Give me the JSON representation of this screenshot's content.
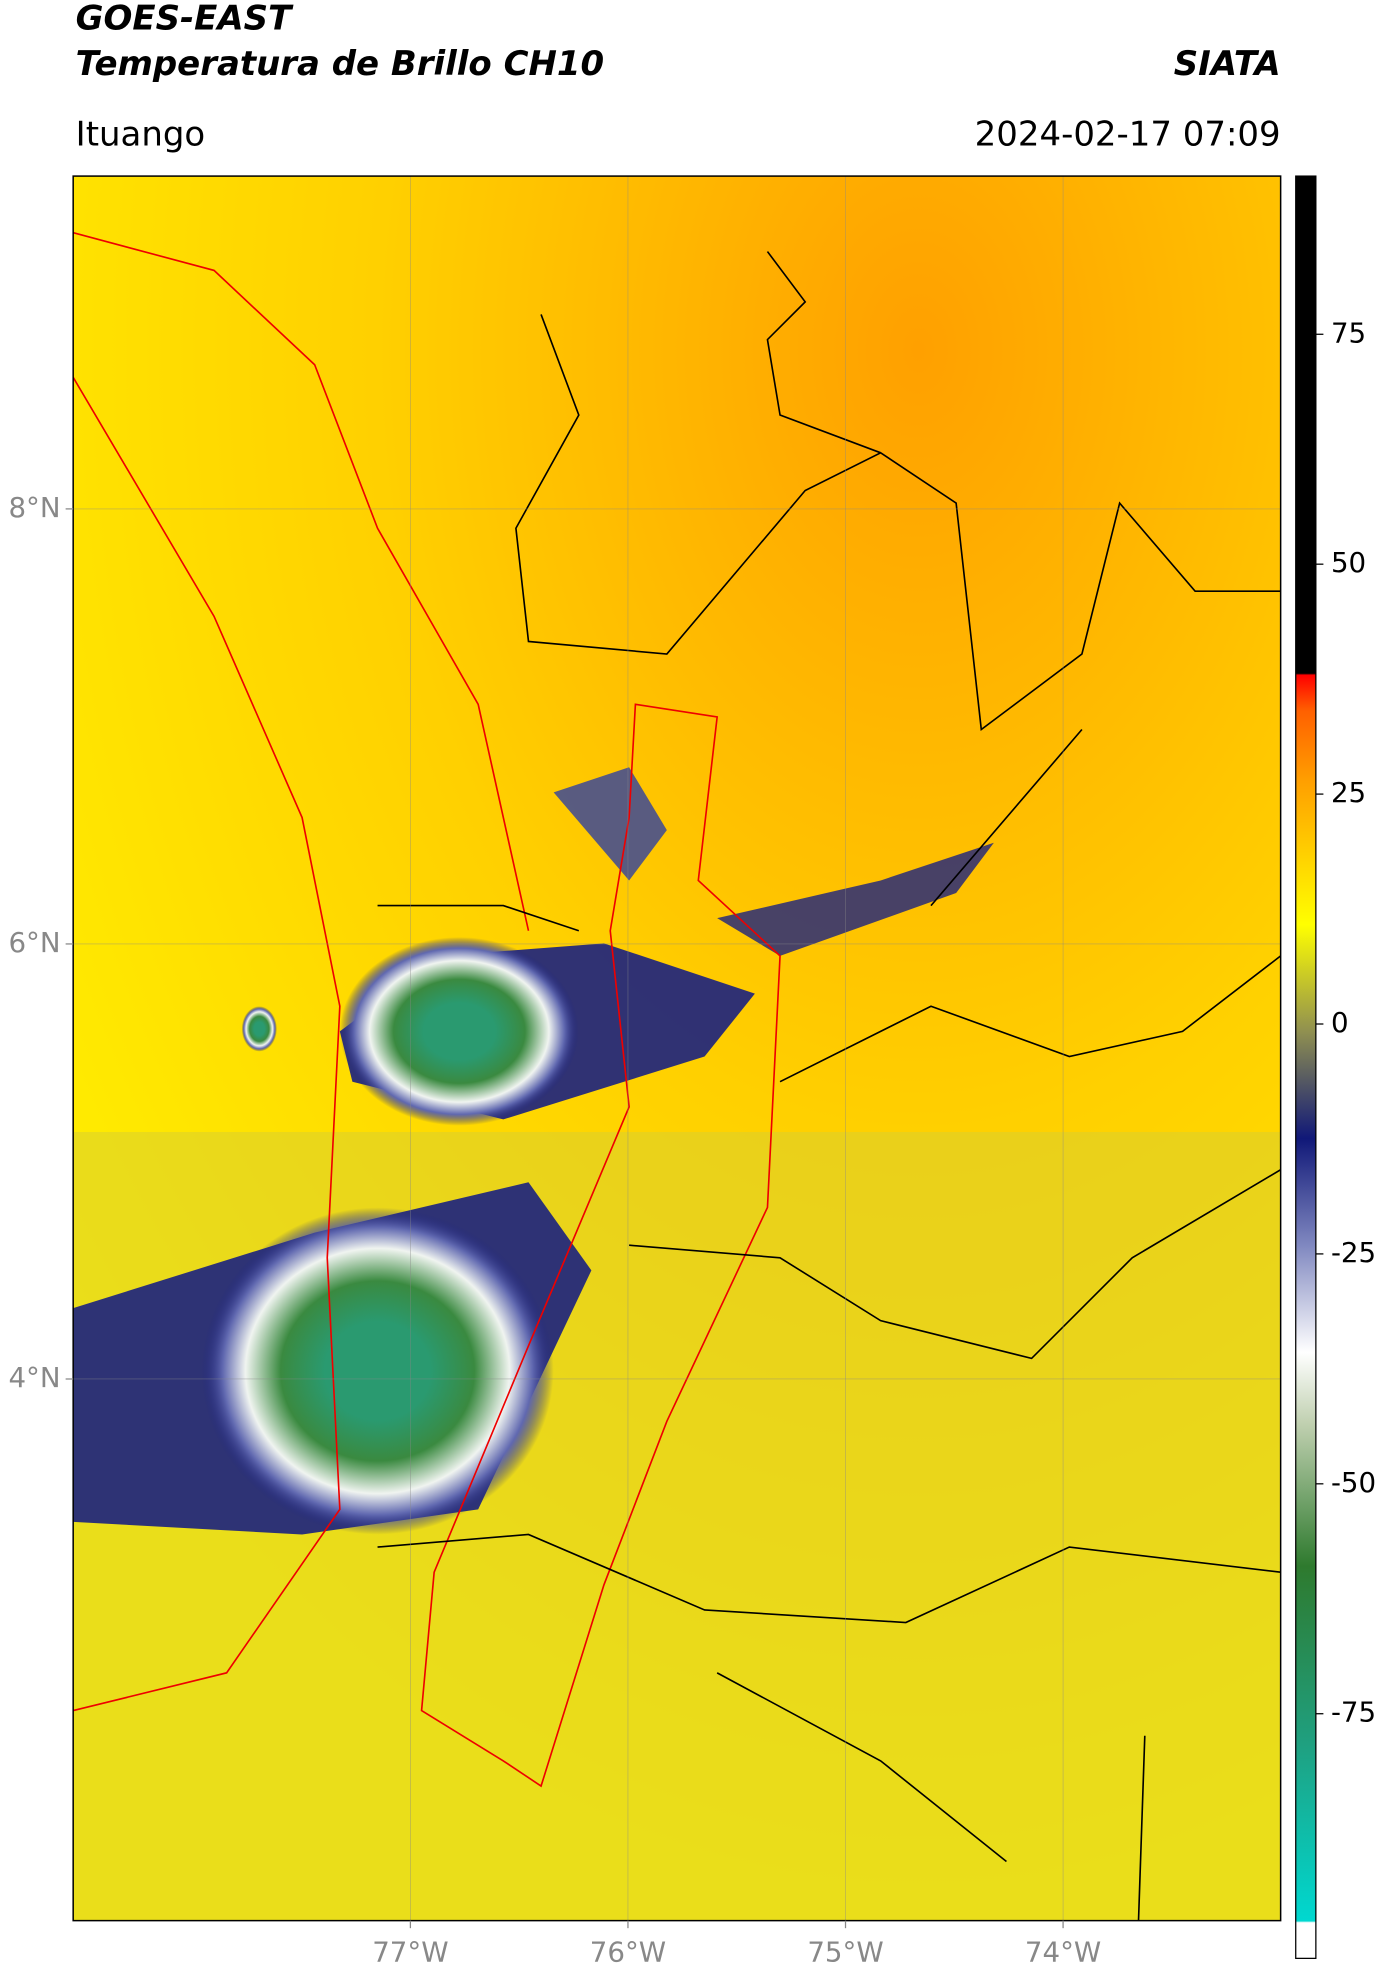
{
  "header": {
    "title_line1": "GOES-EAST",
    "title_line2": "Temperatura de Brillo CH10",
    "source": "SIATA",
    "location": "Ituango",
    "datetime": "2024-02-17 07:09"
  },
  "map": {
    "lonlim": [
      -78.55,
      -73.0
    ],
    "latlim": [
      1.51,
      9.53
    ],
    "grid": true,
    "lon_ticks": [
      {
        "value": -77,
        "label": "77°W"
      },
      {
        "value": -76,
        "label": "76°W"
      },
      {
        "value": -75,
        "label": "75°W"
      },
      {
        "value": -74,
        "label": "74°W"
      }
    ],
    "lat_ticks": [
      {
        "value": 8,
        "label": "8°N"
      },
      {
        "value": 6,
        "label": "6°N"
      },
      {
        "value": 4,
        "label": "4°N"
      }
    ]
  },
  "colorbar": {
    "lim": [
      -101.6,
      92.2
    ],
    "ticks": [
      75,
      50,
      25,
      0,
      -25,
      -50,
      -75
    ]
  }
}
